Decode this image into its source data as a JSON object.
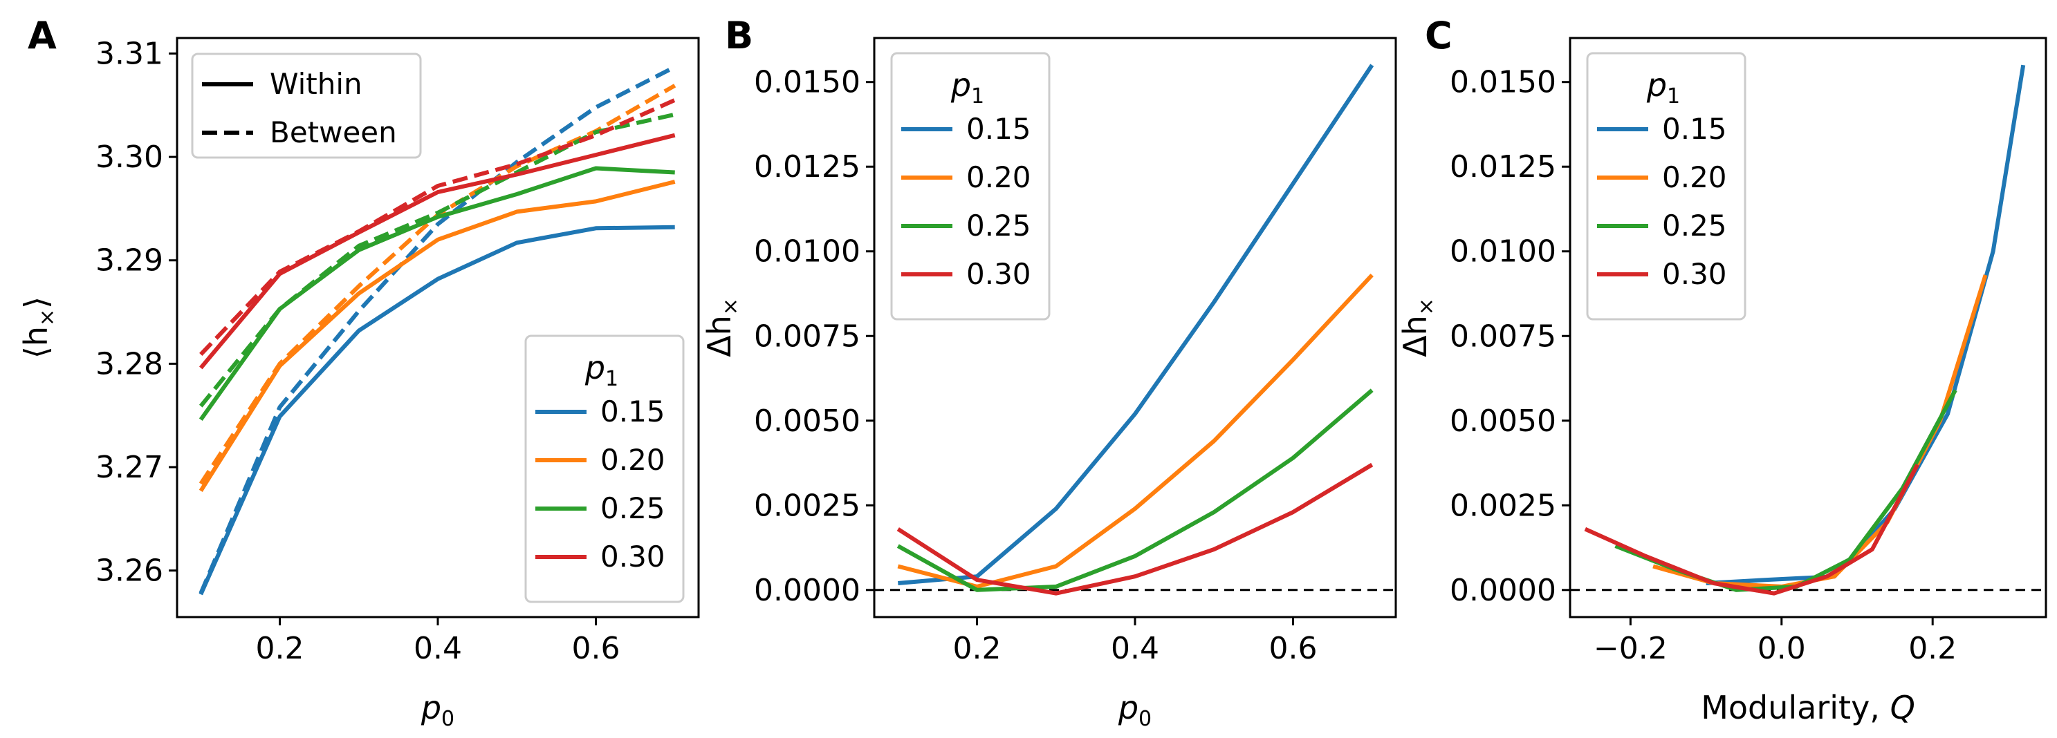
{
  "figure": {
    "panel_letters": [
      "A",
      "B",
      "C"
    ]
  },
  "chart_data": [
    {
      "type": "line",
      "panel": "A",
      "xlabel": "p",
      "xlabel_sub": "0",
      "ylabel": "⟨h",
      "ylabel_sub": "×",
      "ylabel_close": "⟩",
      "xlim": [
        0.07,
        0.73
      ],
      "ylim": [
        3.2555,
        3.3115
      ],
      "xticks": [
        0.2,
        0.4,
        0.6
      ],
      "xtick_labels": [
        "0.2",
        "0.4",
        "0.6"
      ],
      "yticks": [
        3.26,
        3.27,
        3.28,
        3.29,
        3.3,
        3.31
      ],
      "ytick_labels": [
        "3.26",
        "3.27",
        "3.28",
        "3.29",
        "3.30",
        "3.31"
      ],
      "style_legend": {
        "entries": [
          "Within",
          "Between"
        ],
        "position": "top-left"
      },
      "legend": {
        "title": "p",
        "title_sub": "1",
        "entries": [
          "0.15",
          "0.20",
          "0.25",
          "0.30"
        ],
        "position": "bottom-right"
      },
      "series": [
        {
          "name": "0.15",
          "style": "Within",
          "color": "#1f77b4",
          "x": [
            0.1,
            0.2,
            0.3,
            0.4,
            0.5,
            0.6,
            0.7
          ],
          "values": [
            3.2577,
            3.2749,
            3.2832,
            3.2882,
            3.2917,
            3.2931,
            3.2932
          ]
        },
        {
          "name": "0.15",
          "style": "Between",
          "color": "#1f77b4",
          "x": [
            0.1,
            0.2,
            0.3,
            0.4,
            0.5,
            0.6,
            0.7
          ],
          "values": [
            3.2578,
            3.2758,
            3.2851,
            3.2935,
            3.2995,
            3.3048,
            3.3087
          ]
        },
        {
          "name": "0.20",
          "style": "Within",
          "color": "#ff7f0e",
          "x": [
            0.1,
            0.2,
            0.3,
            0.4,
            0.5,
            0.6,
            0.7
          ],
          "values": [
            3.2677,
            3.2798,
            3.2868,
            3.292,
            3.2947,
            3.2957,
            3.2976
          ]
        },
        {
          "name": "0.20",
          "style": "Between",
          "color": "#ff7f0e",
          "x": [
            0.1,
            0.2,
            0.3,
            0.4,
            0.5,
            0.6,
            0.7
          ],
          "values": [
            3.2684,
            3.28,
            3.2875,
            3.2944,
            3.2991,
            3.3025,
            3.3069
          ]
        },
        {
          "name": "0.25",
          "style": "Within",
          "color": "#2ca02c",
          "x": [
            0.1,
            0.2,
            0.3,
            0.4,
            0.5,
            0.6,
            0.7
          ],
          "values": [
            3.2746,
            3.2853,
            3.291,
            3.2942,
            3.2964,
            3.2989,
            3.2985
          ]
        },
        {
          "name": "0.25",
          "style": "Between",
          "color": "#2ca02c",
          "x": [
            0.1,
            0.2,
            0.3,
            0.4,
            0.5,
            0.6,
            0.7
          ],
          "values": [
            3.2759,
            3.2853,
            3.2914,
            3.2946,
            3.2985,
            3.3024,
            3.3041
          ]
        },
        {
          "name": "0.30",
          "style": "Within",
          "color": "#d62728",
          "x": [
            0.1,
            0.2,
            0.3,
            0.4,
            0.5,
            0.6,
            0.7
          ],
          "values": [
            3.2796,
            3.2887,
            3.2927,
            3.2966,
            3.2983,
            3.3002,
            3.3021
          ]
        },
        {
          "name": "0.30",
          "style": "Between",
          "color": "#d62728",
          "x": [
            0.1,
            0.2,
            0.3,
            0.4,
            0.5,
            0.6,
            0.7
          ],
          "values": [
            3.2809,
            3.2889,
            3.2928,
            3.2972,
            3.2993,
            3.3021,
            3.3055
          ]
        }
      ]
    },
    {
      "type": "line",
      "panel": "B",
      "xlabel": "p",
      "xlabel_sub": "0",
      "ylabel": "Δh",
      "ylabel_sub": "×",
      "ylabel_close": "",
      "xlim": [
        0.07,
        0.73
      ],
      "ylim": [
        -0.0008,
        0.0163
      ],
      "xticks": [
        0.2,
        0.4,
        0.6
      ],
      "xtick_labels": [
        "0.2",
        "0.4",
        "0.6"
      ],
      "yticks": [
        0.0,
        0.0025,
        0.005,
        0.0075,
        0.01,
        0.0125,
        0.015
      ],
      "ytick_labels": [
        "0.0000",
        "0.0025",
        "0.0050",
        "0.0075",
        "0.0100",
        "0.0125",
        "0.0150"
      ],
      "reference_line": {
        "y": 0,
        "style": "dashed"
      },
      "legend": {
        "title": "p",
        "title_sub": "1",
        "entries": [
          "0.15",
          "0.20",
          "0.25",
          "0.30"
        ],
        "position": "top-left"
      },
      "series": [
        {
          "name": "0.15",
          "color": "#1f77b4",
          "x": [
            0.1,
            0.2,
            0.3,
            0.4,
            0.5,
            0.6,
            0.7
          ],
          "values": [
            0.0002,
            0.0004,
            0.0024,
            0.0052,
            0.0085,
            0.012,
            0.0155
          ]
        },
        {
          "name": "0.20",
          "color": "#ff7f0e",
          "x": [
            0.1,
            0.2,
            0.3,
            0.4,
            0.5,
            0.6,
            0.7
          ],
          "values": [
            0.0007,
            0.0001,
            0.0007,
            0.0024,
            0.0044,
            0.0068,
            0.0093
          ]
        },
        {
          "name": "0.25",
          "color": "#2ca02c",
          "x": [
            0.1,
            0.2,
            0.3,
            0.4,
            0.5,
            0.6,
            0.7
          ],
          "values": [
            0.0013,
            0.0,
            0.0001,
            0.001,
            0.0023,
            0.0039,
            0.0059
          ]
        },
        {
          "name": "0.30",
          "color": "#d62728",
          "x": [
            0.1,
            0.2,
            0.3,
            0.4,
            0.5,
            0.6,
            0.7
          ],
          "values": [
            0.0018,
            0.0003,
            -0.0001,
            0.0004,
            0.0012,
            0.0023,
            0.0037
          ]
        }
      ]
    },
    {
      "type": "line",
      "panel": "C",
      "xlabel": "Modularity, ",
      "xlabel_italic": "Q",
      "ylabel": "Δh",
      "ylabel_sub": "×",
      "ylabel_close": "",
      "xlim": [
        -0.28,
        0.35
      ],
      "ylim": [
        -0.0008,
        0.0163
      ],
      "xticks": [
        -0.2,
        0.0,
        0.2
      ],
      "xtick_labels": [
        "−0.2",
        "0.0",
        "0.2"
      ],
      "yticks": [
        0.0,
        0.0025,
        0.005,
        0.0075,
        0.01,
        0.0125,
        0.015
      ],
      "ytick_labels": [
        "0.0000",
        "0.0025",
        "0.0050",
        "0.0075",
        "0.0100",
        "0.0125",
        "0.0150"
      ],
      "reference_line": {
        "y": 0,
        "style": "dashed"
      },
      "legend": {
        "title": "p",
        "title_sub": "1",
        "entries": [
          "0.15",
          "0.20",
          "0.25",
          "0.30"
        ],
        "position": "top-left"
      },
      "series": [
        {
          "name": "0.15",
          "color": "#1f77b4",
          "x": [
            -0.1,
            -0.02,
            0.07,
            0.15,
            0.22,
            0.28,
            0.32
          ],
          "values": [
            0.0002,
            0.0003,
            0.0004,
            0.0024,
            0.0052,
            0.01,
            0.0155
          ]
        },
        {
          "name": "0.20",
          "color": "#ff7f0e",
          "x": [
            -0.17,
            -0.09,
            0.0,
            0.07,
            0.14,
            0.21,
            0.27
          ],
          "values": [
            0.0007,
            0.0002,
            0.0001,
            0.0004,
            0.002,
            0.005,
            0.0093
          ]
        },
        {
          "name": "0.25",
          "color": "#2ca02c",
          "x": [
            -0.22,
            -0.14,
            -0.06,
            0.02,
            0.09,
            0.16,
            0.23
          ],
          "values": [
            0.0013,
            0.0006,
            0.0,
            0.0001,
            0.0009,
            0.003,
            0.0059
          ]
        },
        {
          "name": "0.30",
          "color": "#d62728",
          "x": [
            -0.26,
            -0.18,
            -0.09,
            -0.01,
            0.06,
            0.12,
            0.18
          ],
          "values": [
            0.0018,
            0.001,
            0.0002,
            -0.0001,
            0.0004,
            0.0012,
            0.0037
          ]
        }
      ]
    }
  ]
}
